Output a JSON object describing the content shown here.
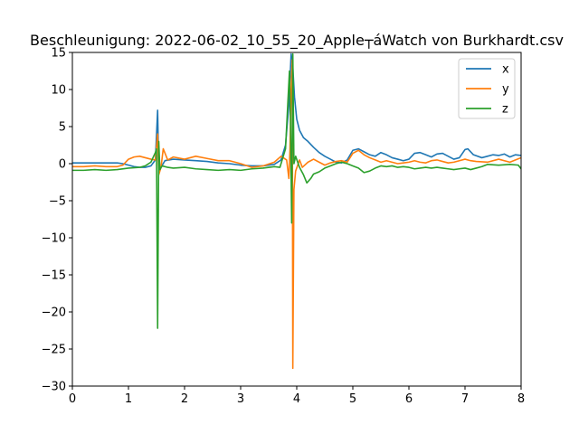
{
  "chart_data": {
    "type": "line",
    "title": "Beschleunigung: 2022-06-02_10_55_20_Apple┬áWatch von Burkhardt.csv",
    "xlabel": "",
    "ylabel": "",
    "xlim": [
      0,
      8
    ],
    "ylim": [
      -30,
      15
    ],
    "x_ticks": [
      "0",
      "1",
      "2",
      "3",
      "4",
      "5",
      "6",
      "7",
      "8"
    ],
    "y_ticks": [
      "15",
      "10",
      "5",
      "0",
      "−5",
      "−10",
      "−15",
      "−20",
      "−25",
      "−30"
    ],
    "grid": false,
    "legend_position": "top-right",
    "series": [
      {
        "name": "x",
        "color": "#1f77b4",
        "points": [
          [
            0,
            0.1
          ],
          [
            0.2,
            0.1
          ],
          [
            0.4,
            0.1
          ],
          [
            0.6,
            0.1
          ],
          [
            0.8,
            0.1
          ],
          [
            0.9,
            0.0
          ],
          [
            1.0,
            -0.2
          ],
          [
            1.1,
            -0.4
          ],
          [
            1.2,
            -0.5
          ],
          [
            1.3,
            -0.5
          ],
          [
            1.4,
            -0.3
          ],
          [
            1.48,
            0.5
          ],
          [
            1.52,
            7.2
          ],
          [
            1.54,
            -1.0
          ],
          [
            1.58,
            -0.5
          ],
          [
            1.65,
            0.4
          ],
          [
            1.8,
            0.6
          ],
          [
            2.0,
            0.5
          ],
          [
            2.2,
            0.4
          ],
          [
            2.4,
            0.3
          ],
          [
            2.6,
            0.1
          ],
          [
            2.8,
            0.0
          ],
          [
            3.0,
            -0.2
          ],
          [
            3.2,
            -0.3
          ],
          [
            3.4,
            -0.3
          ],
          [
            3.6,
            -0.1
          ],
          [
            3.72,
            0.5
          ],
          [
            3.8,
            2.5
          ],
          [
            3.86,
            8.0
          ],
          [
            3.9,
            14.8
          ],
          [
            3.93,
            13.0
          ],
          [
            3.96,
            9.0
          ],
          [
            4.0,
            6.0
          ],
          [
            4.05,
            4.5
          ],
          [
            4.12,
            3.5
          ],
          [
            4.2,
            3.0
          ],
          [
            4.3,
            2.2
          ],
          [
            4.4,
            1.5
          ],
          [
            4.5,
            1.0
          ],
          [
            4.6,
            0.6
          ],
          [
            4.7,
            0.2
          ],
          [
            4.8,
            0.1
          ],
          [
            4.9,
            0.5
          ],
          [
            5.0,
            1.8
          ],
          [
            5.1,
            2.0
          ],
          [
            5.2,
            1.6
          ],
          [
            5.3,
            1.2
          ],
          [
            5.4,
            1.0
          ],
          [
            5.5,
            1.5
          ],
          [
            5.6,
            1.2
          ],
          [
            5.7,
            0.8
          ],
          [
            5.8,
            0.6
          ],
          [
            5.9,
            0.4
          ],
          [
            6.0,
            0.6
          ],
          [
            6.1,
            1.4
          ],
          [
            6.2,
            1.5
          ],
          [
            6.3,
            1.2
          ],
          [
            6.4,
            0.9
          ],
          [
            6.5,
            1.3
          ],
          [
            6.6,
            1.4
          ],
          [
            6.7,
            1.0
          ],
          [
            6.8,
            0.6
          ],
          [
            6.9,
            0.8
          ],
          [
            7.0,
            1.9
          ],
          [
            7.05,
            2.0
          ],
          [
            7.15,
            1.2
          ],
          [
            7.3,
            0.8
          ],
          [
            7.4,
            1.0
          ],
          [
            7.5,
            1.2
          ],
          [
            7.6,
            1.1
          ],
          [
            7.7,
            1.3
          ],
          [
            7.8,
            0.9
          ],
          [
            7.9,
            1.2
          ],
          [
            8.0,
            1.1
          ]
        ]
      },
      {
        "name": "y",
        "color": "#ff7f0e",
        "points": [
          [
            0,
            -0.4
          ],
          [
            0.2,
            -0.4
          ],
          [
            0.4,
            -0.3
          ],
          [
            0.6,
            -0.4
          ],
          [
            0.8,
            -0.4
          ],
          [
            0.9,
            -0.2
          ],
          [
            1.0,
            0.6
          ],
          [
            1.1,
            0.9
          ],
          [
            1.2,
            1.0
          ],
          [
            1.3,
            0.8
          ],
          [
            1.4,
            0.6
          ],
          [
            1.48,
            0.5
          ],
          [
            1.52,
            4.0
          ],
          [
            1.54,
            -1.5
          ],
          [
            1.58,
            -0.5
          ],
          [
            1.62,
            2.0
          ],
          [
            1.7,
            0.5
          ],
          [
            1.8,
            0.9
          ],
          [
            2.0,
            0.6
          ],
          [
            2.2,
            1.0
          ],
          [
            2.4,
            0.7
          ],
          [
            2.6,
            0.4
          ],
          [
            2.8,
            0.4
          ],
          [
            3.0,
            0.0
          ],
          [
            3.2,
            -0.5
          ],
          [
            3.4,
            -0.3
          ],
          [
            3.6,
            0.2
          ],
          [
            3.72,
            1.0
          ],
          [
            3.82,
            0.5
          ],
          [
            3.86,
            -2.0
          ],
          [
            3.88,
            2.0
          ],
          [
            3.9,
            10.0
          ],
          [
            3.92,
            14.0
          ],
          [
            3.93,
            -27.6
          ],
          [
            3.95,
            -3.5
          ],
          [
            3.98,
            -1.0
          ],
          [
            4.05,
            0.5
          ],
          [
            4.1,
            -0.5
          ],
          [
            4.2,
            0.2
          ],
          [
            4.3,
            0.6
          ],
          [
            4.4,
            0.2
          ],
          [
            4.5,
            -0.2
          ],
          [
            4.6,
            0.1
          ],
          [
            4.7,
            0.3
          ],
          [
            4.8,
            0.4
          ],
          [
            4.9,
            0.2
          ],
          [
            5.0,
            1.4
          ],
          [
            5.1,
            1.8
          ],
          [
            5.2,
            1.2
          ],
          [
            5.3,
            0.8
          ],
          [
            5.4,
            0.5
          ],
          [
            5.5,
            0.2
          ],
          [
            5.6,
            0.4
          ],
          [
            5.7,
            0.2
          ],
          [
            5.8,
            0.0
          ],
          [
            5.9,
            0.1
          ],
          [
            6.0,
            0.2
          ],
          [
            6.1,
            0.4
          ],
          [
            6.2,
            0.2
          ],
          [
            6.3,
            0.1
          ],
          [
            6.4,
            0.4
          ],
          [
            6.5,
            0.5
          ],
          [
            6.6,
            0.3
          ],
          [
            6.7,
            0.1
          ],
          [
            6.8,
            0.2
          ],
          [
            6.9,
            0.4
          ],
          [
            7.0,
            0.6
          ],
          [
            7.1,
            0.4
          ],
          [
            7.2,
            0.3
          ],
          [
            7.4,
            0.2
          ],
          [
            7.6,
            0.6
          ],
          [
            7.8,
            0.2
          ],
          [
            7.9,
            0.5
          ],
          [
            8.0,
            0.8
          ]
        ]
      },
      {
        "name": "z",
        "color": "#2ca02c",
        "points": [
          [
            0,
            -0.9
          ],
          [
            0.2,
            -0.9
          ],
          [
            0.4,
            -0.8
          ],
          [
            0.6,
            -0.9
          ],
          [
            0.8,
            -0.8
          ],
          [
            1.0,
            -0.6
          ],
          [
            1.2,
            -0.5
          ],
          [
            1.3,
            -0.3
          ],
          [
            1.4,
            0.2
          ],
          [
            1.48,
            1.5
          ],
          [
            1.5,
            2.0
          ],
          [
            1.52,
            -22.2
          ],
          [
            1.54,
            3.0
          ],
          [
            1.56,
            -0.8
          ],
          [
            1.6,
            -0.3
          ],
          [
            1.7,
            -0.5
          ],
          [
            1.8,
            -0.6
          ],
          [
            2.0,
            -0.5
          ],
          [
            2.2,
            -0.7
          ],
          [
            2.4,
            -0.8
          ],
          [
            2.6,
            -0.9
          ],
          [
            2.8,
            -0.8
          ],
          [
            3.0,
            -0.9
          ],
          [
            3.2,
            -0.7
          ],
          [
            3.4,
            -0.6
          ],
          [
            3.6,
            -0.4
          ],
          [
            3.7,
            -0.5
          ],
          [
            3.8,
            2.0
          ],
          [
            3.84,
            8.0
          ],
          [
            3.87,
            12.5
          ],
          [
            3.89,
            5.0
          ],
          [
            3.91,
            -8.0
          ],
          [
            3.93,
            14.8
          ],
          [
            3.95,
            0.0
          ],
          [
            3.98,
            1.0
          ],
          [
            4.05,
            -0.5
          ],
          [
            4.12,
            -1.5
          ],
          [
            4.18,
            -2.6
          ],
          [
            4.25,
            -2.0
          ],
          [
            4.3,
            -1.4
          ],
          [
            4.4,
            -1.1
          ],
          [
            4.5,
            -0.6
          ],
          [
            4.6,
            -0.3
          ],
          [
            4.7,
            0.0
          ],
          [
            4.8,
            0.2
          ],
          [
            4.9,
            0.0
          ],
          [
            5.0,
            -0.3
          ],
          [
            5.1,
            -0.6
          ],
          [
            5.2,
            -1.2
          ],
          [
            5.3,
            -1.0
          ],
          [
            5.4,
            -0.6
          ],
          [
            5.5,
            -0.3
          ],
          [
            5.6,
            -0.4
          ],
          [
            5.7,
            -0.3
          ],
          [
            5.8,
            -0.5
          ],
          [
            5.9,
            -0.4
          ],
          [
            6.0,
            -0.5
          ],
          [
            6.1,
            -0.7
          ],
          [
            6.2,
            -0.6
          ],
          [
            6.3,
            -0.5
          ],
          [
            6.4,
            -0.6
          ],
          [
            6.5,
            -0.5
          ],
          [
            6.6,
            -0.6
          ],
          [
            6.7,
            -0.7
          ],
          [
            6.8,
            -0.8
          ],
          [
            6.9,
            -0.7
          ],
          [
            7.0,
            -0.6
          ],
          [
            7.1,
            -0.8
          ],
          [
            7.2,
            -0.6
          ],
          [
            7.3,
            -0.4
          ],
          [
            7.4,
            -0.1
          ],
          [
            7.6,
            -0.2
          ],
          [
            7.8,
            -0.1
          ],
          [
            7.95,
            -0.2
          ],
          [
            8.0,
            -0.7
          ]
        ]
      }
    ]
  }
}
